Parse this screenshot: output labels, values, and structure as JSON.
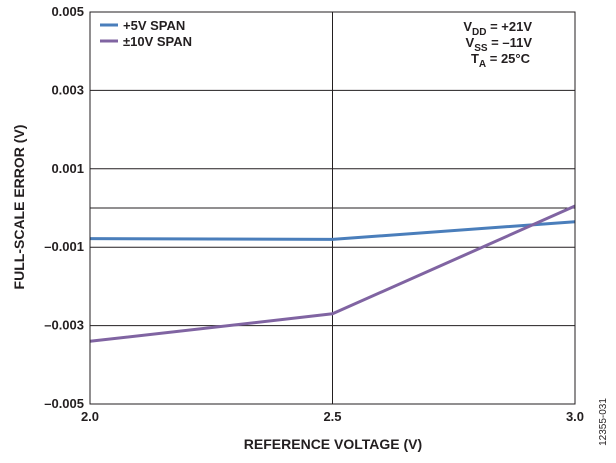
{
  "chart_data": {
    "type": "line",
    "xlabel": "REFERENCE VOLTAGE (V)",
    "ylabel": "FULL-SCALE ERROR (V)",
    "xlim": [
      2.0,
      3.0
    ],
    "ylim": [
      -0.005,
      0.005
    ],
    "x_ticks": [
      "2.0",
      "2.5",
      "3.0"
    ],
    "y_ticks": [
      "0.005",
      "0.003",
      "0.001",
      "–0.001",
      "–0.003",
      "–0.005"
    ],
    "gridlines_y": [
      0.005,
      0.003,
      0.001,
      0.0,
      -0.001,
      -0.003,
      -0.005
    ],
    "gridlines_x": [
      2.5
    ],
    "grid": true,
    "legend_position": "top-left",
    "series": [
      {
        "name": "+5V SPAN",
        "color": "#4a7ebb",
        "x": [
          2.0,
          2.5,
          3.0
        ],
        "y": [
          -0.00078,
          -0.0008,
          -0.00035
        ]
      },
      {
        "name": "±10V SPAN",
        "color": "#8064a2",
        "x": [
          2.0,
          2.5,
          3.0
        ],
        "y": [
          -0.0034,
          -0.0027,
          5e-05
        ]
      }
    ],
    "conditions": {
      "vdd": {
        "main": "V",
        "sub": "DD",
        "rest": " = +21V"
      },
      "vss": {
        "main": "V",
        "sub": "SS",
        "rest": " = –11V"
      },
      "ta": {
        "main": "T",
        "sub": "A",
        "rest": " = 25°C"
      }
    },
    "figure_id": "12355-031"
  }
}
